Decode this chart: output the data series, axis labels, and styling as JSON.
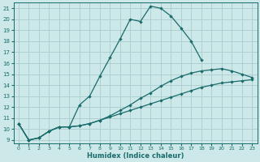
{
  "xlabel": "Humidex (Indice chaleur)",
  "background_color": "#cce8e8",
  "grid_color": "#aacccc",
  "line_color": "#1a6b6b",
  "xlim": [
    -0.5,
    23.5
  ],
  "ylim": [
    8.7,
    21.5
  ],
  "xticks": [
    0,
    1,
    2,
    3,
    4,
    5,
    6,
    7,
    8,
    9,
    10,
    11,
    12,
    13,
    14,
    15,
    16,
    17,
    18,
    19,
    20,
    21,
    22,
    23
  ],
  "yticks": [
    9,
    10,
    11,
    12,
    13,
    14,
    15,
    16,
    17,
    18,
    19,
    20,
    21
  ],
  "line1_x": [
    0,
    1,
    2,
    3,
    4,
    5,
    6,
    7,
    8,
    9,
    10,
    11,
    12,
    13,
    14,
    15,
    16,
    17,
    18
  ],
  "line1_y": [
    10.5,
    9.0,
    9.2,
    9.8,
    10.2,
    10.2,
    12.2,
    13.0,
    14.8,
    16.5,
    18.2,
    20.0,
    19.8,
    21.2,
    21.0,
    20.3,
    19.2,
    18.0,
    16.3
  ],
  "line2_x": [
    0,
    1,
    2,
    3,
    4,
    5,
    6,
    7,
    8,
    9,
    10,
    11,
    12,
    13,
    14,
    15,
    16,
    17,
    18,
    19,
    20,
    21,
    22,
    23
  ],
  "line2_y": [
    10.5,
    9.0,
    9.2,
    9.8,
    10.2,
    10.2,
    10.3,
    10.5,
    10.8,
    11.2,
    11.7,
    12.2,
    12.8,
    13.3,
    13.9,
    14.4,
    14.8,
    15.1,
    15.3,
    15.4,
    15.5,
    15.3,
    15.0,
    14.7
  ],
  "line3_x": [
    0,
    1,
    2,
    3,
    4,
    5,
    6,
    7,
    8,
    9,
    10,
    11,
    12,
    13,
    14,
    15,
    16,
    17,
    18,
    19,
    20,
    21,
    22,
    23
  ],
  "line3_y": [
    10.5,
    9.0,
    9.2,
    9.8,
    10.2,
    10.2,
    10.3,
    10.5,
    10.8,
    11.1,
    11.4,
    11.7,
    12.0,
    12.3,
    12.6,
    12.9,
    13.2,
    13.5,
    13.8,
    14.0,
    14.2,
    14.3,
    14.4,
    14.5
  ]
}
